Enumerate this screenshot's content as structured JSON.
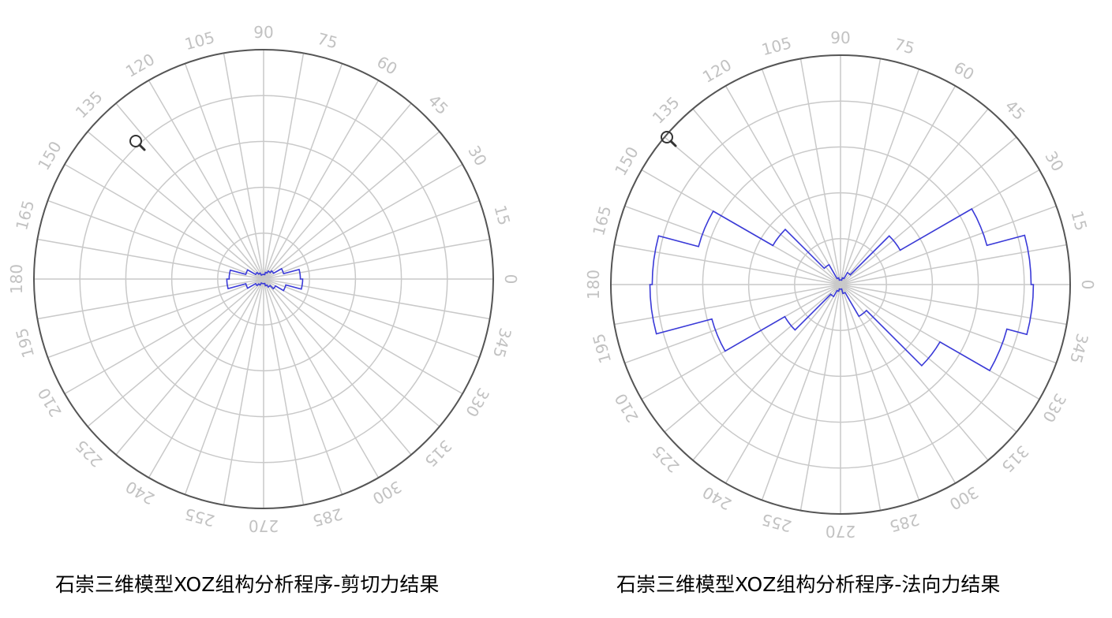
{
  "chart_data": [
    {
      "type": "polar-rose",
      "title": "石崇三维模型XOZ组构分析程序-剪切力结果",
      "angle_tick_labels": [
        "0",
        "15",
        "30",
        "45",
        "60",
        "75",
        "90",
        "105",
        "120",
        "135",
        "150",
        "165",
        "180",
        "195",
        "210",
        "225",
        "240",
        "255",
        "270",
        "285",
        "300",
        "315",
        "330",
        "345"
      ],
      "angle_step_deg": 15,
      "rings": 5,
      "r_max": 1.0,
      "grid": true,
      "bin_width_deg": 15,
      "bins_start_deg": [
        0,
        15,
        30,
        45,
        60,
        75,
        90,
        105,
        120,
        135,
        150,
        165,
        180,
        195,
        210,
        225,
        240,
        255,
        270,
        285,
        300,
        315,
        330,
        345
      ],
      "values": [
        0.16,
        0.09,
        0.05,
        0.04,
        0.03,
        0.02,
        0.02,
        0.02,
        0.03,
        0.04,
        0.08,
        0.15,
        0.16,
        0.08,
        0.04,
        0.03,
        0.02,
        0.02,
        0.02,
        0.03,
        0.04,
        0.06,
        0.1,
        0.17
      ],
      "series_color": "#3a3ad8"
    },
    {
      "type": "polar-rose",
      "title": "石崇三维模型XOZ组构分析程序-法向力结果",
      "angle_tick_labels": [
        "0",
        "15",
        "30",
        "45",
        "60",
        "75",
        "90",
        "105",
        "120",
        "135",
        "150",
        "165",
        "180",
        "195",
        "210",
        "225",
        "240",
        "255",
        "270",
        "285",
        "300",
        "315",
        "330",
        "345"
      ],
      "angle_step_deg": 15,
      "rings": 5,
      "r_max": 1.0,
      "grid": true,
      "bin_width_deg": 15,
      "bins_start_deg": [
        0,
        15,
        30,
        45,
        60,
        75,
        90,
        105,
        120,
        135,
        150,
        165,
        180,
        195,
        210,
        225,
        240,
        255,
        270,
        285,
        300,
        315,
        330,
        345
      ],
      "values": [
        0.83,
        0.66,
        0.3,
        0.06,
        0.03,
        0.02,
        0.02,
        0.03,
        0.1,
        0.34,
        0.64,
        0.82,
        0.83,
        0.58,
        0.28,
        0.06,
        0.03,
        0.02,
        0.02,
        0.04,
        0.16,
        0.5,
        0.75,
        0.84
      ],
      "series_color": "#3a3ad8"
    }
  ]
}
